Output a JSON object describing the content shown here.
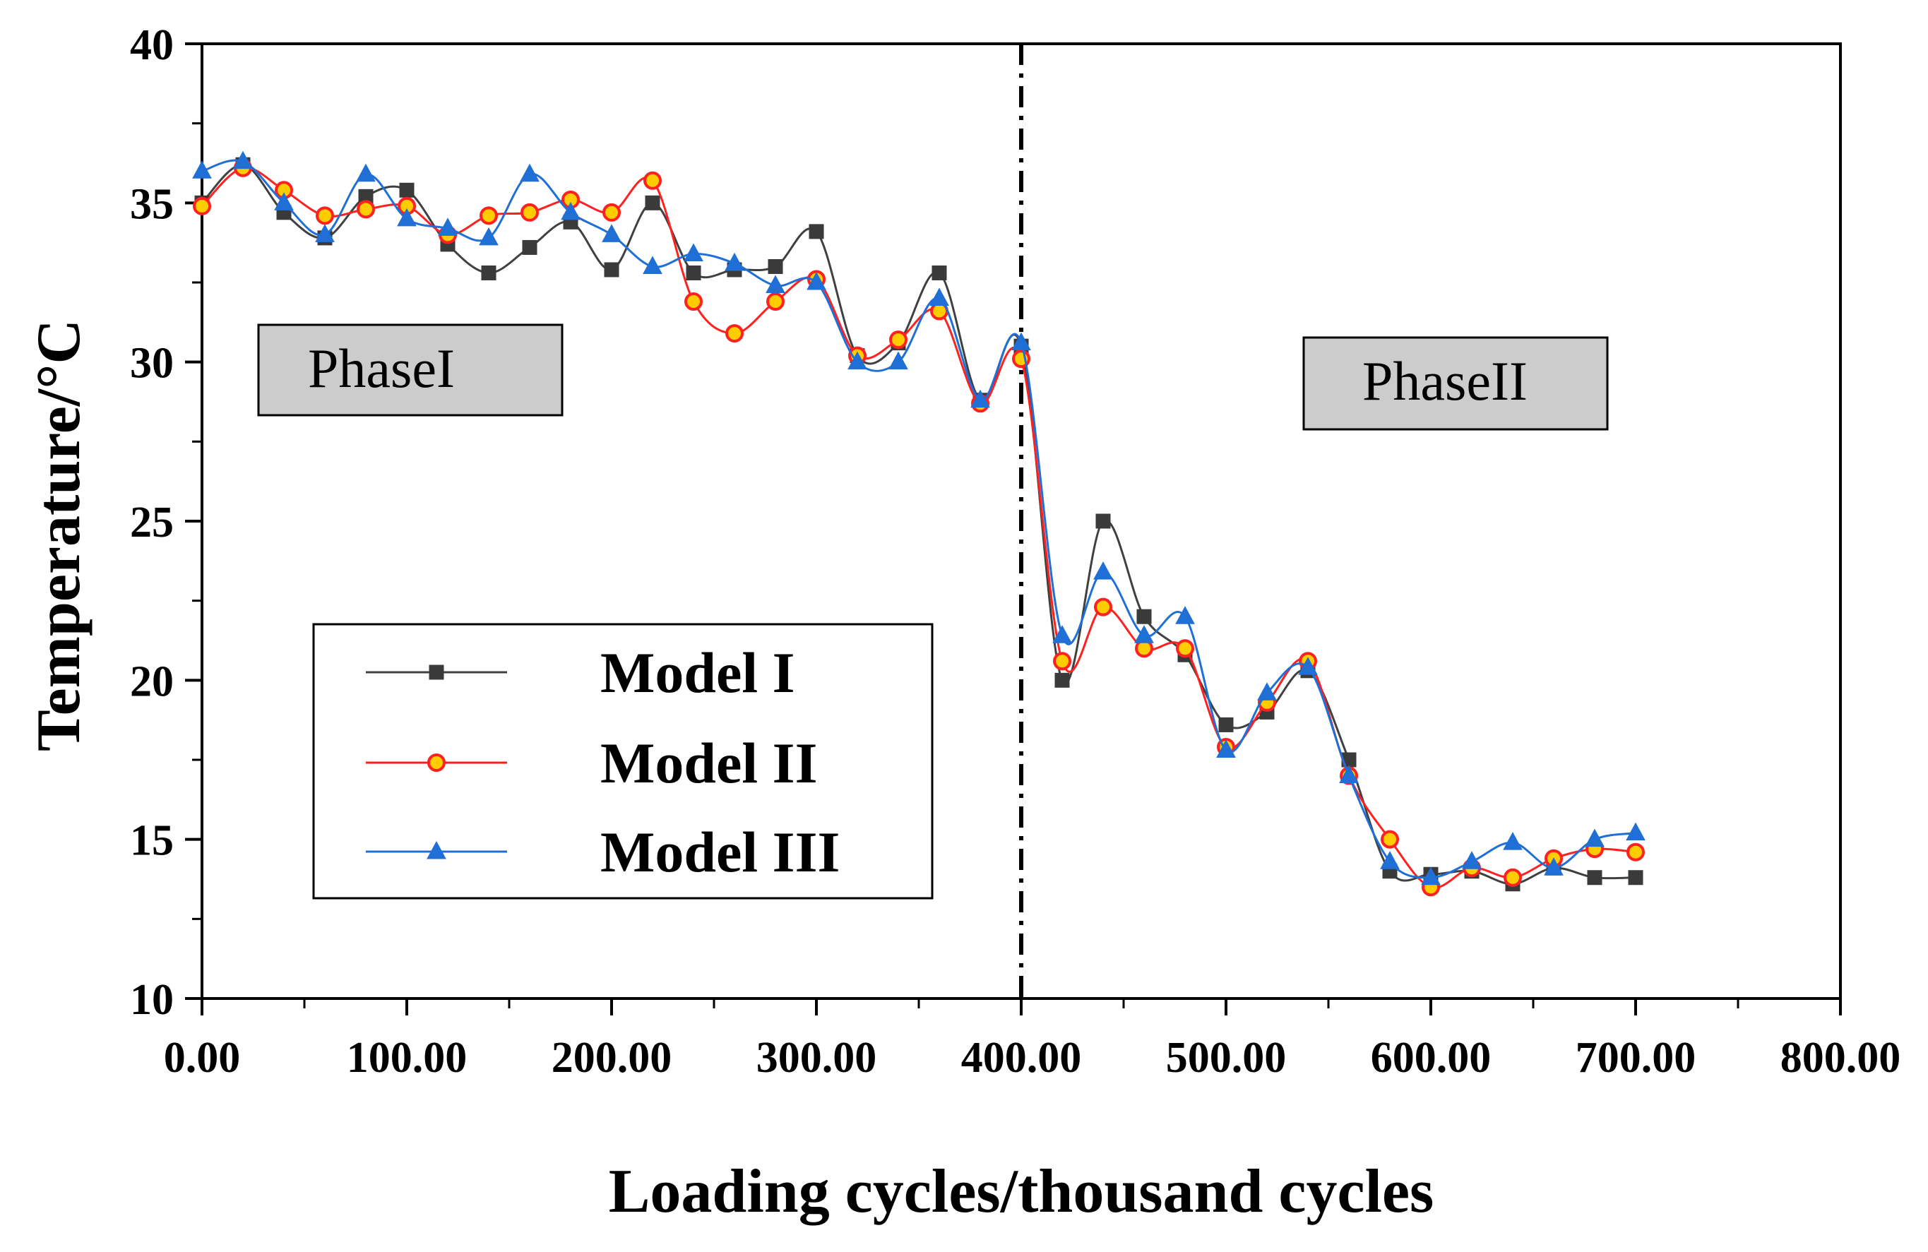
{
  "chart_data": {
    "type": "line",
    "title": "",
    "xlabel": "Loading cycles/thousand cycles",
    "ylabel": "Temperature/°C",
    "xlim": [
      0,
      800
    ],
    "ylim": [
      10,
      40
    ],
    "x_ticks": [
      0,
      100,
      200,
      300,
      400,
      500,
      600,
      700,
      800
    ],
    "x_tick_labels": [
      "0.00",
      "100.00",
      "200.00",
      "300.00",
      "400.00",
      "500.00",
      "600.00",
      "700.00",
      "800.00"
    ],
    "y_ticks": [
      10,
      15,
      20,
      25,
      30,
      35,
      40
    ],
    "y_tick_labels": [
      "10",
      "15",
      "20",
      "25",
      "30",
      "35",
      "40"
    ],
    "grid": false,
    "legend_position": "lower-left",
    "divider_x": 400,
    "annotations": [
      {
        "text": "PhaseI",
        "anchor": "upper-left"
      },
      {
        "text": "PhaseII",
        "anchor": "upper-right"
      }
    ],
    "x": [
      0,
      20,
      40,
      60,
      80,
      100,
      120,
      140,
      160,
      180,
      200,
      220,
      240,
      260,
      280,
      300,
      320,
      340,
      360,
      380,
      400,
      420,
      440,
      460,
      480,
      500,
      520,
      540,
      560,
      580,
      600,
      620,
      640,
      660,
      680,
      700
    ],
    "series": [
      {
        "name": "Model I",
        "color": "#404040",
        "marker": "square",
        "values": [
          35.0,
          36.2,
          34.7,
          33.9,
          35.2,
          35.4,
          33.7,
          32.8,
          33.6,
          34.4,
          32.9,
          35.0,
          32.8,
          32.9,
          33.0,
          34.1,
          30.2,
          30.6,
          32.8,
          28.8,
          30.5,
          20.0,
          25.0,
          22.0,
          20.8,
          18.6,
          19.0,
          20.3,
          17.5,
          14.0,
          13.9,
          14.0,
          13.6,
          14.1,
          13.8,
          13.8
        ]
      },
      {
        "name": "Model II",
        "color": "#ff2020",
        "marker": "circle",
        "values": [
          34.9,
          36.1,
          35.4,
          34.6,
          34.8,
          34.9,
          34.0,
          34.6,
          34.7,
          35.1,
          34.7,
          35.7,
          31.9,
          30.9,
          31.9,
          32.6,
          30.2,
          30.7,
          31.6,
          28.7,
          30.1,
          20.6,
          22.3,
          21.0,
          21.0,
          17.9,
          19.3,
          20.6,
          17.0,
          15.0,
          13.5,
          14.1,
          13.8,
          14.4,
          14.7,
          14.6
        ]
      },
      {
        "name": "Model III",
        "color": "#1f6fd6",
        "marker": "triangle",
        "values": [
          36.0,
          36.3,
          35.0,
          34.0,
          35.9,
          34.5,
          34.2,
          33.9,
          35.9,
          34.7,
          34.0,
          33.0,
          33.4,
          33.1,
          32.4,
          32.5,
          30.0,
          30.0,
          32.0,
          28.8,
          30.6,
          21.4,
          23.4,
          21.4,
          22.0,
          17.8,
          19.6,
          20.4,
          17.0,
          14.3,
          13.8,
          14.3,
          14.9,
          14.1,
          15.0,
          15.2
        ]
      }
    ]
  }
}
